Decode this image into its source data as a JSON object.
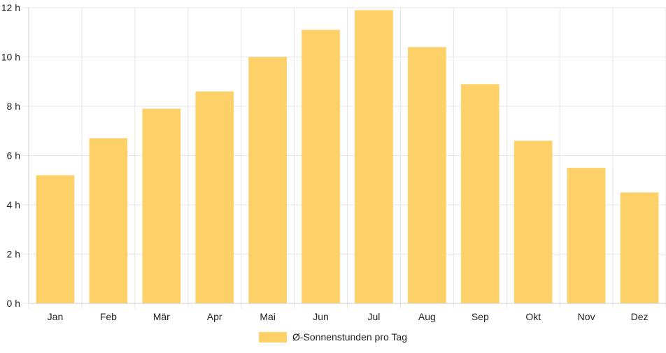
{
  "chart_data": {
    "type": "bar",
    "categories": [
      "Jan",
      "Feb",
      "Mär",
      "Apr",
      "Mai",
      "Jun",
      "Jul",
      "Aug",
      "Sep",
      "Okt",
      "Nov",
      "Dez"
    ],
    "series": [
      {
        "name": "Ø-Sonnenstunden pro Tag",
        "values": [
          5.2,
          6.7,
          7.9,
          8.6,
          10.0,
          11.1,
          11.9,
          10.4,
          8.9,
          6.6,
          5.5,
          4.5
        ]
      }
    ],
    "y_ticks": [
      "0 h",
      "2 h",
      "4 h",
      "6 h",
      "8 h",
      "10 h",
      "12 h"
    ],
    "ylim": [
      0,
      12
    ],
    "y_tick_step": 2,
    "title": "",
    "xlabel": "",
    "ylabel": "",
    "grid": true,
    "legend_position": "bottom",
    "colors": {
      "bar": "#fdd068",
      "grid": "#e6e6e6",
      "axis": "#cccccc",
      "text": "#222222"
    }
  }
}
